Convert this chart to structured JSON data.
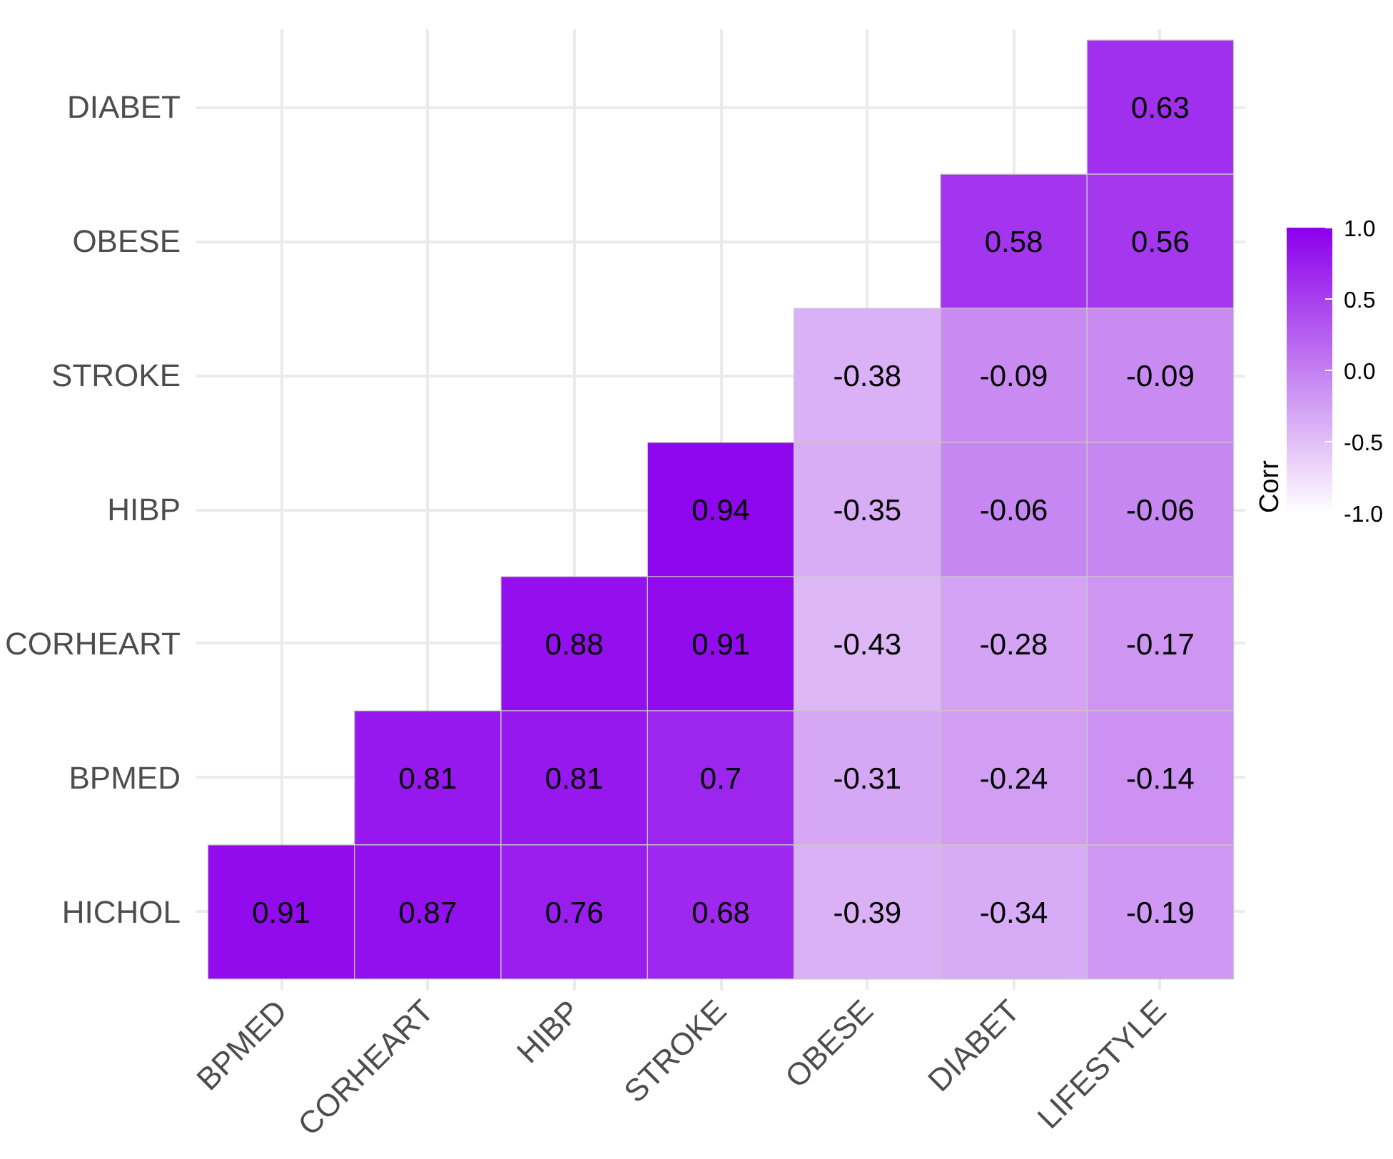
{
  "chart_data": {
    "type": "heatmap",
    "categories": [
      "BPMED",
      "CORHEART",
      "HIBP",
      "STROKE",
      "OBESE",
      "DIABET",
      "LIFESTYLE"
    ],
    "y_categories": [
      "DIABET",
      "OBESE",
      "STROKE",
      "HIBP",
      "CORHEART",
      "BPMED",
      "HICHOL"
    ],
    "cells": [
      [
        null,
        null,
        null,
        null,
        null,
        null,
        0.63
      ],
      [
        null,
        null,
        null,
        null,
        null,
        0.58,
        0.56
      ],
      [
        null,
        null,
        null,
        null,
        -0.38,
        -0.09,
        -0.09
      ],
      [
        null,
        null,
        null,
        0.94,
        -0.35,
        -0.06,
        -0.06
      ],
      [
        null,
        null,
        0.88,
        0.91,
        -0.43,
        -0.28,
        -0.17
      ],
      [
        null,
        0.81,
        0.81,
        0.7,
        -0.31,
        -0.24,
        -0.14
      ],
      [
        0.91,
        0.87,
        0.76,
        0.68,
        -0.39,
        -0.34,
        -0.19
      ]
    ],
    "clabel": "Corr",
    "clim": [
      -1,
      1
    ],
    "cticks": [
      {
        "value": -1,
        "label": "-1.0"
      },
      {
        "value": -0.5,
        "label": "-0.5"
      },
      {
        "value": 0,
        "label": "0.0"
      },
      {
        "value": 0.5,
        "label": "0.5"
      },
      {
        "value": 1,
        "label": "1.0"
      }
    ],
    "data_labels": true,
    "grid": true
  }
}
